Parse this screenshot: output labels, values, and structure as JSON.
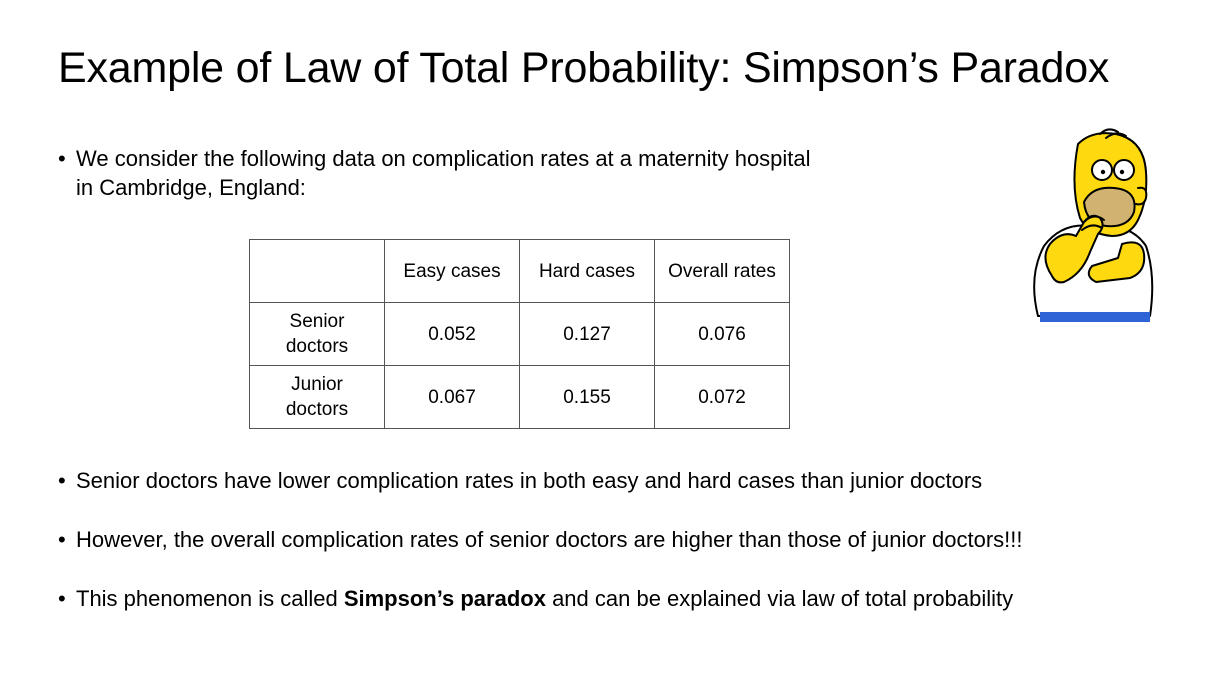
{
  "title": "Example of Law of Total Probability: Simpson’s Paradox",
  "bullet_symbol": "•",
  "intro": {
    "line1": "We consider the following data on complication rates at a maternity hospital",
    "line2": "in Cambridge, England:"
  },
  "table": {
    "headers": [
      "",
      "Easy cases",
      "Hard cases",
      "Overall rates"
    ],
    "rows": [
      {
        "label_line1": "Senior",
        "label_line2": "doctors",
        "values": [
          "0.052",
          "0.127",
          "0.076"
        ]
      },
      {
        "label_line1": "Junior",
        "label_line2": "doctors",
        "values": [
          "0.067",
          "0.155",
          "0.072"
        ]
      }
    ]
  },
  "bullets": {
    "b2": "Senior doctors have lower complication rates in both easy and hard cases than junior doctors",
    "b3": "However, the overall complication rates of senior doctors are higher than those of junior doctors!!!",
    "b4_pre": "This phenomenon is called ",
    "b4_bold": "Simpson’s paradox",
    "b4_post": " and can be explained via law of total probability"
  },
  "colors": {
    "skin": "#FED90F",
    "shirt": "#FFFFFF",
    "pants": "#2F64D6",
    "outline": "#000000"
  }
}
